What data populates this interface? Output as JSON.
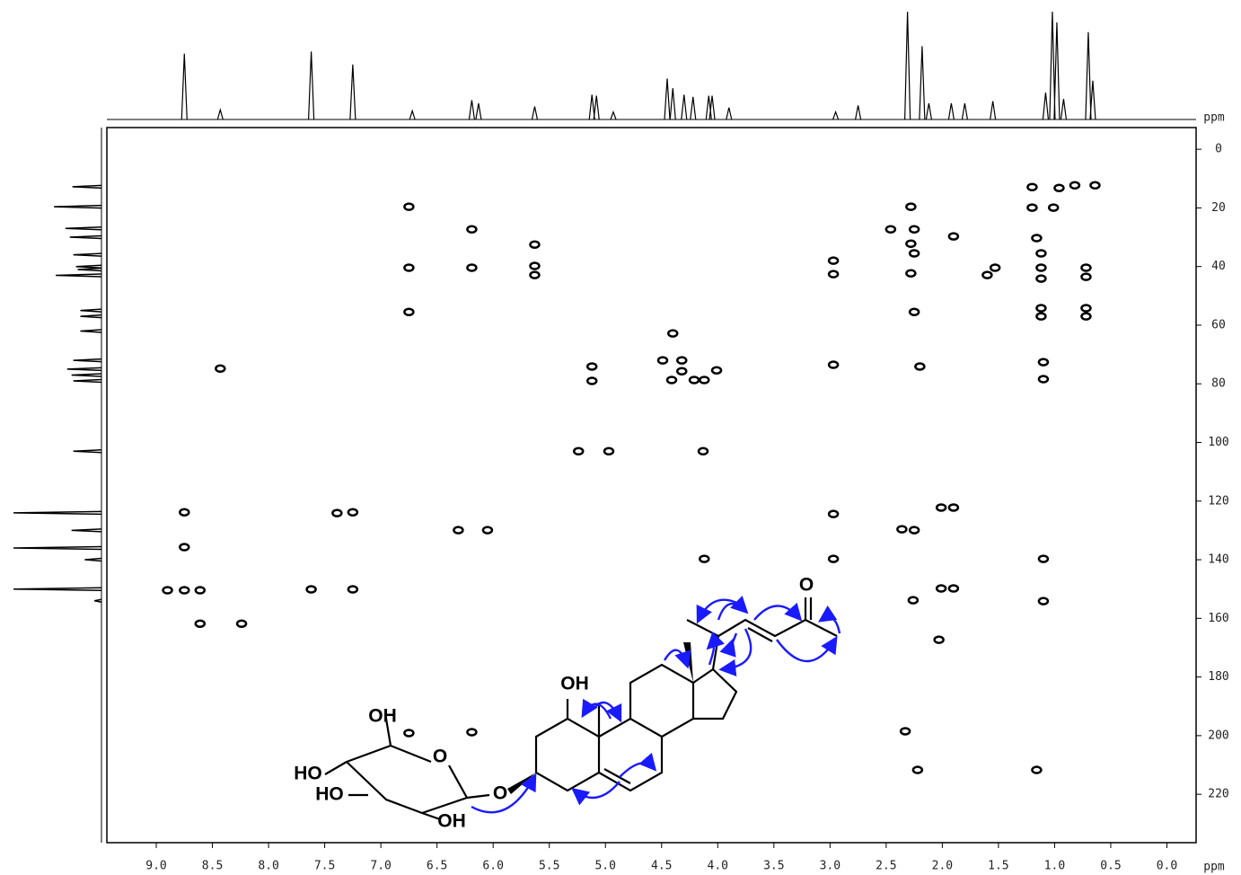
{
  "chart_data": {
    "type": "scatter",
    "color": "#000000",
    "x_label": "ppm",
    "y_label": "ppm",
    "xlim": [
      9.44,
      -0.26
    ],
    "ylim": [
      -7.4,
      236.5
    ],
    "xticks": [
      {
        "value": 9.0,
        "label": "9.0"
      },
      {
        "value": 8.5,
        "label": "8.5"
      },
      {
        "value": 8.0,
        "label": "8.0"
      },
      {
        "value": 7.5,
        "label": "7.5"
      },
      {
        "value": 7.0,
        "label": "7.0"
      },
      {
        "value": 6.5,
        "label": "6.5"
      },
      {
        "value": 6.0,
        "label": "6.0"
      },
      {
        "value": 5.5,
        "label": "5.5"
      },
      {
        "value": 5.0,
        "label": "5.0"
      },
      {
        "value": 4.5,
        "label": "4.5"
      },
      {
        "value": 4.0,
        "label": "4.0"
      },
      {
        "value": 3.5,
        "label": "3.5"
      },
      {
        "value": 3.0,
        "label": "3.0"
      },
      {
        "value": 2.5,
        "label": "2.5"
      },
      {
        "value": 2.0,
        "label": "2.0"
      },
      {
        "value": 1.5,
        "label": "1.5"
      },
      {
        "value": 1.0,
        "label": "1.0"
      },
      {
        "value": 0.5,
        "label": "0.5"
      },
      {
        "value": 0.0,
        "label": "0.0"
      }
    ],
    "yticks": [
      0,
      20,
      40,
      60,
      80,
      100,
      120,
      140,
      160,
      180,
      200,
      220
    ],
    "x": [
      6.75,
      6.19,
      5.63,
      5.63,
      5.63,
      6.75,
      6.19,
      6.75,
      8.43,
      5.12,
      5.12,
      5.24,
      4.97,
      4.13,
      4.4,
      4.49,
      4.32,
      4.32,
      4.41,
      4.21,
      4.12,
      4.01,
      8.75,
      8.75,
      8.9,
      8.75,
      8.61,
      8.61,
      8.24,
      7.62,
      7.25,
      7.25,
      7.39,
      6.31,
      6.05,
      4.12,
      6.75,
      6.19,
      2.97,
      2.97,
      2.97,
      2.97,
      2.97,
      2.36,
      2.25,
      2.26,
      2.33,
      2.22,
      2.28,
      2.25,
      2.28,
      2.25,
      2.28,
      2.25,
      2.2,
      2.46,
      1.9,
      2.01,
      1.9,
      2.01,
      1.9,
      2.03,
      1.6,
      1.53,
      1.2,
      0.96,
      0.82,
      0.64,
      1.2,
      1.01,
      1.16,
      1.12,
      1.12,
      1.12,
      0.72,
      0.72,
      1.12,
      1.12,
      0.72,
      0.72,
      1.1,
      1.1,
      1.1,
      1.1,
      1.16
    ],
    "values": [
      19.6,
      27.3,
      32.5,
      39.8,
      42.9,
      40.4,
      40.4,
      55.5,
      74.8,
      74.1,
      79.0,
      103.0,
      103.0,
      103.0,
      62.8,
      72.0,
      72.0,
      75.7,
      78.7,
      78.7,
      78.7,
      75.4,
      123.8,
      135.7,
      150.4,
      150.4,
      150.4,
      161.8,
      161.8,
      150.1,
      150.1,
      123.8,
      124.1,
      129.9,
      129.9,
      139.7,
      199.1,
      198.8,
      73.5,
      38.0,
      42.6,
      124.4,
      139.7,
      129.6,
      129.9,
      153.8,
      198.5,
      211.7,
      19.6,
      27.3,
      32.2,
      35.5,
      42.3,
      55.5,
      74.1,
      27.3,
      29.7,
      122.2,
      122.2,
      149.8,
      149.8,
      167.3,
      42.9,
      40.4,
      12.9,
      13.2,
      12.3,
      12.3,
      19.9,
      19.9,
      30.3,
      35.5,
      40.4,
      44.1,
      40.4,
      43.5,
      54.2,
      57.0,
      54.2,
      57.0,
      72.6,
      78.4,
      139.7,
      154.1,
      211.7
    ],
    "top_projection": {
      "x": [
        8.75,
        8.43,
        7.62,
        7.25,
        6.72,
        6.19,
        6.13,
        5.63,
        5.12,
        5.08,
        4.93,
        4.45,
        4.4,
        4.3,
        4.22,
        4.08,
        4.05,
        3.9,
        2.95,
        2.75,
        2.31,
        2.18,
        2.12,
        1.92,
        1.8,
        1.55,
        1.08,
        1.02,
        0.98,
        0.92,
        0.7,
        0.66
      ],
      "values": [
        61,
        9,
        63,
        51,
        8,
        18,
        15,
        12,
        23,
        22,
        7,
        38,
        29,
        23,
        21,
        22,
        22,
        11,
        7,
        13,
        100,
        68,
        15,
        15,
        15,
        17,
        25,
        100,
        90,
        19,
        81,
        36
      ]
    },
    "left_projection": {
      "x": [
        12.8,
        19.6,
        27.0,
        30.0,
        36.0,
        40.0,
        41.0,
        43.0,
        55.0,
        57.0,
        62.0,
        72.0,
        75.0,
        77.0,
        79.0,
        103.0,
        124.0,
        130.0,
        136.0,
        140.0,
        150.0,
        154.0
      ],
      "values": [
        33,
        54,
        41,
        36,
        32,
        29,
        27,
        52,
        24,
        24,
        24,
        32,
        39,
        34,
        32,
        32,
        100,
        34,
        100,
        19,
        100,
        8
      ]
    }
  },
  "structure": {
    "labels": [
      "OH",
      "O",
      "HO",
      "HO",
      "OH",
      "O",
      "OH",
      "O"
    ]
  }
}
